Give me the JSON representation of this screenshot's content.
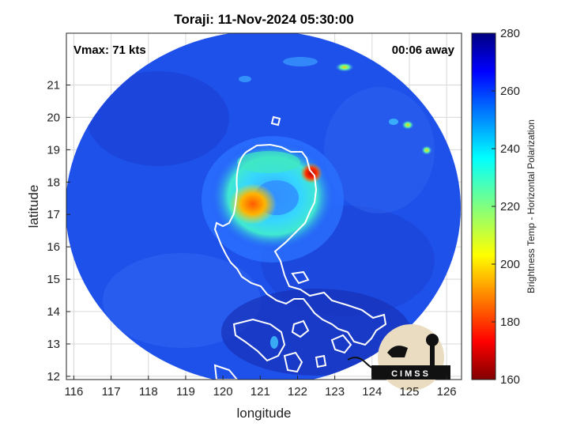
{
  "chart_data": {
    "type": "heatmap",
    "title": "Toraji: 11-Nov-2024 05:30:00",
    "xlabel": "longitude",
    "ylabel": "latitude",
    "xlim": [
      115.8,
      126.4
    ],
    "ylim": [
      11.9,
      22.6
    ],
    "x_ticks": [
      116,
      117,
      118,
      119,
      120,
      121,
      122,
      123,
      124,
      125,
      126
    ],
    "y_ticks": [
      12,
      13,
      14,
      15,
      16,
      17,
      18,
      19,
      20,
      21
    ],
    "grid": true,
    "annotations": {
      "vmax": "Vmax: 71 kts",
      "time_offset": "00:06 away"
    },
    "colorbar": {
      "label": "Brightness Temp - Horizontal Polarization",
      "range": [
        160,
        280
      ],
      "ticks": [
        160,
        180,
        200,
        220,
        240,
        260,
        280
      ],
      "colormap": "jet"
    },
    "swath_center": [
      121.1,
      16.8
    ],
    "cold_features": [
      {
        "name": "eyewall-west",
        "lon": 120.8,
        "lat": 16.9,
        "value": 185
      },
      {
        "name": "eyewall-northeast",
        "lon": 122.35,
        "lat": 17.8,
        "value": 175
      },
      {
        "name": "rainband-north",
        "lon": 121.2,
        "lat": 18.2,
        "value": 222
      },
      {
        "name": "outer-band-east",
        "lon": 122.3,
        "lat": 17.0,
        "value": 228
      },
      {
        "name": "cell-northeast",
        "lon": 123.3,
        "lat": 21.8,
        "value": 226
      },
      {
        "name": "cell-east-1",
        "lon": 125.0,
        "lat": 19.2,
        "value": 222
      },
      {
        "name": "cell-east-2",
        "lon": 125.4,
        "lat": 18.4,
        "value": 224
      }
    ]
  },
  "logo": {
    "text": "CIMSS"
  }
}
